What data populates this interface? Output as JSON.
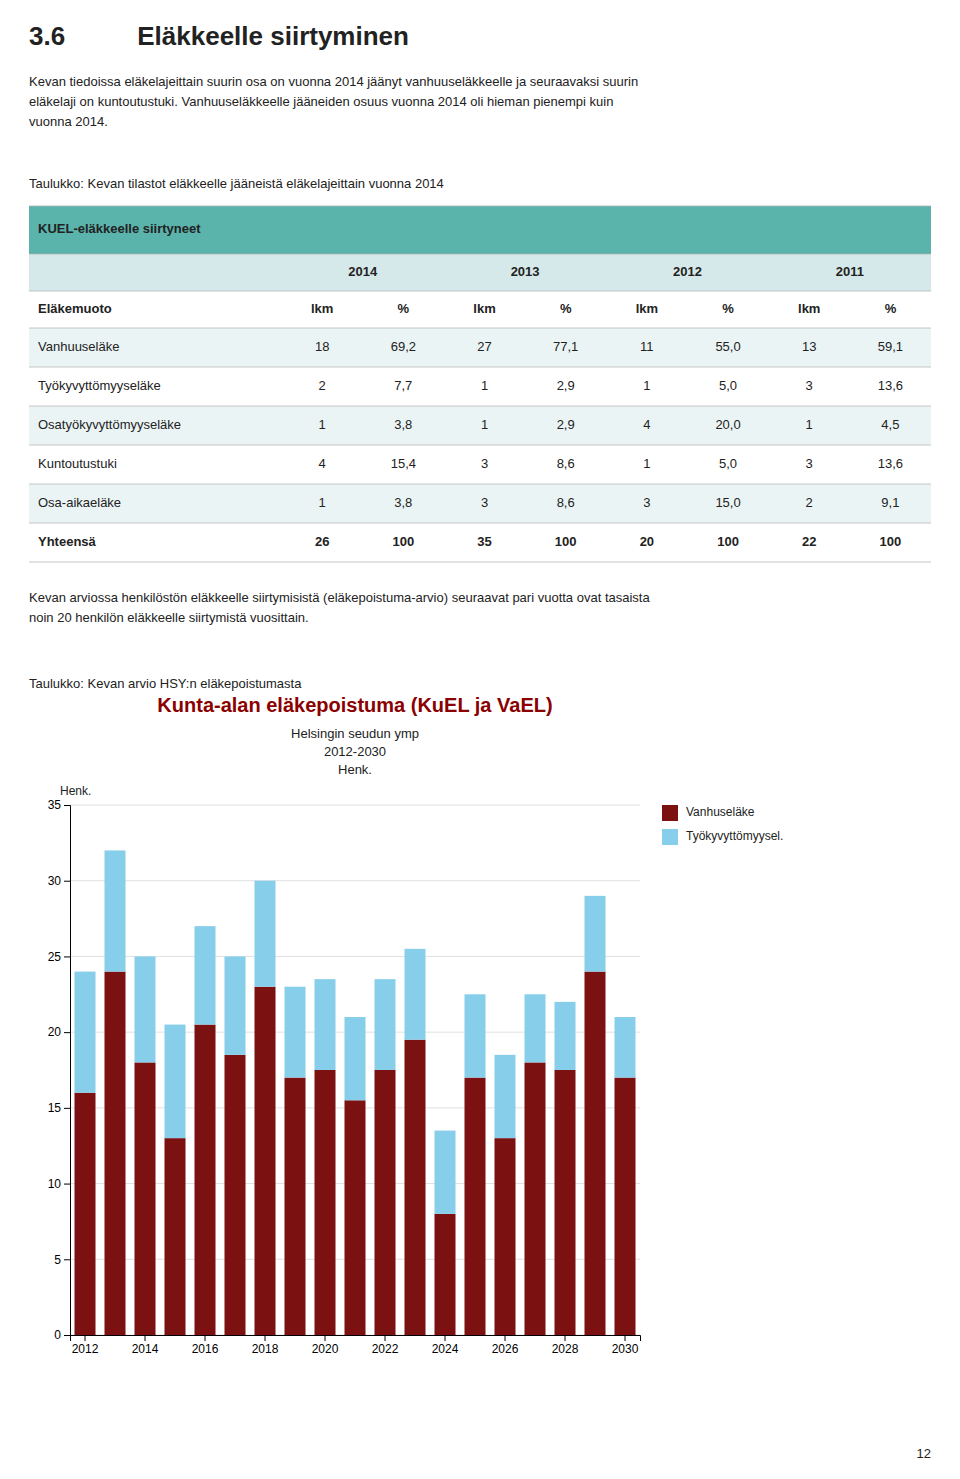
{
  "page_number": "12",
  "section_number": "3.6",
  "section_title": "Eläkkeelle siirtyminen",
  "body_text_1": [
    "Kevan tiedoissa eläkelajeittain suurin osa on vuonna 2014 jäänyt vanhuuseläkkeelle ja seuraavaksi suurin",
    "eläkelaji on kuntoutustuki. Vanhuuseläkkeelle jääneiden osuus vuonna 2014 oli hieman pienempi kuin",
    "vuonna 2014."
  ],
  "table_caption": "Taulukko: Kevan tilastot eläkkeelle jääneistä eläkelajeittain vuonna 2014",
  "table": {
    "title": "KUEL-eläkkeelle siirtyneet",
    "years": [
      "2014",
      "2013",
      "2012",
      "2011"
    ],
    "columns": [
      "Eläkemuoto",
      "lkm",
      "%",
      "lkm",
      "%",
      "lkm",
      "%",
      "lkm",
      "%"
    ],
    "rows": [
      {
        "name": "Vanhuuseläke",
        "bold": false,
        "values": [
          "18",
          "69,2",
          "27",
          "77,1",
          "11",
          "55,0",
          "13",
          "59,1"
        ]
      },
      {
        "name": "Työkyvyttömyyseläke",
        "bold": false,
        "values": [
          "2",
          "7,7",
          "1",
          "2,9",
          "1",
          "5,0",
          "3",
          "13,6"
        ]
      },
      {
        "name": "Osatyökyvyttömyyseläke",
        "bold": false,
        "values": [
          "1",
          "3,8",
          "1",
          "2,9",
          "4",
          "20,0",
          "1",
          "4,5"
        ]
      },
      {
        "name": "Kuntoutustuki",
        "bold": false,
        "values": [
          "4",
          "15,4",
          "3",
          "8,6",
          "1",
          "5,0",
          "3",
          "13,6"
        ]
      },
      {
        "name": "Osa-aikaeläke",
        "bold": false,
        "values": [
          "1",
          "3,8",
          "3",
          "8,6",
          "3",
          "15,0",
          "2",
          "9,1"
        ]
      },
      {
        "name": "Yhteensä",
        "bold": true,
        "values": [
          "26",
          "100",
          "35",
          "100",
          "20",
          "100",
          "22",
          "100"
        ]
      }
    ]
  },
  "body_text_2": [
    "Kevan arviossa henkilöstön eläkkeelle siirtymisistä (eläkepoistuma-arvio) seuraavat pari vuotta ovat tasaista",
    "noin 20 henkilön eläkkeelle siirtymistä vuosittain."
  ],
  "chart_caption": "Taulukko: Kevan arvio HSY:n eläkepoistumasta",
  "chart_data": {
    "type": "bar",
    "stacked": true,
    "title": "Kunta-alan eläkepoistuma (KuEL ja VaEL)",
    "subtitle": [
      "Helsingin seudun ymp",
      "2012-2030",
      "Henk."
    ],
    "y_label": "Henk.",
    "categories": [
      "2012",
      null,
      "2014",
      null,
      "2016",
      null,
      "2018",
      null,
      "2020",
      null,
      "2022",
      null,
      "2024",
      null,
      "2026",
      null,
      "2028",
      null,
      "2030"
    ],
    "series": [
      {
        "name": "Vanhuseläke",
        "color": "#7b1111",
        "values": [
          16,
          24,
          18,
          13,
          20.5,
          18.5,
          23,
          17,
          17.5,
          15.5,
          17.5,
          19.5,
          8,
          17,
          13,
          18,
          17.5,
          24,
          17
        ]
      },
      {
        "name": "Työkyvyttömyysel.",
        "color": "#87ceeb",
        "values": [
          8,
          8,
          7,
          7.5,
          6.5,
          6.5,
          7,
          6,
          6,
          5.5,
          6,
          6,
          5.5,
          5.5,
          5.5,
          4.5,
          4.5,
          5,
          4
        ]
      }
    ],
    "ylim": [
      0,
      35
    ],
    "yticks": [
      0,
      5,
      10,
      15,
      20,
      25,
      30,
      35
    ],
    "grid": true,
    "legend": "right"
  }
}
